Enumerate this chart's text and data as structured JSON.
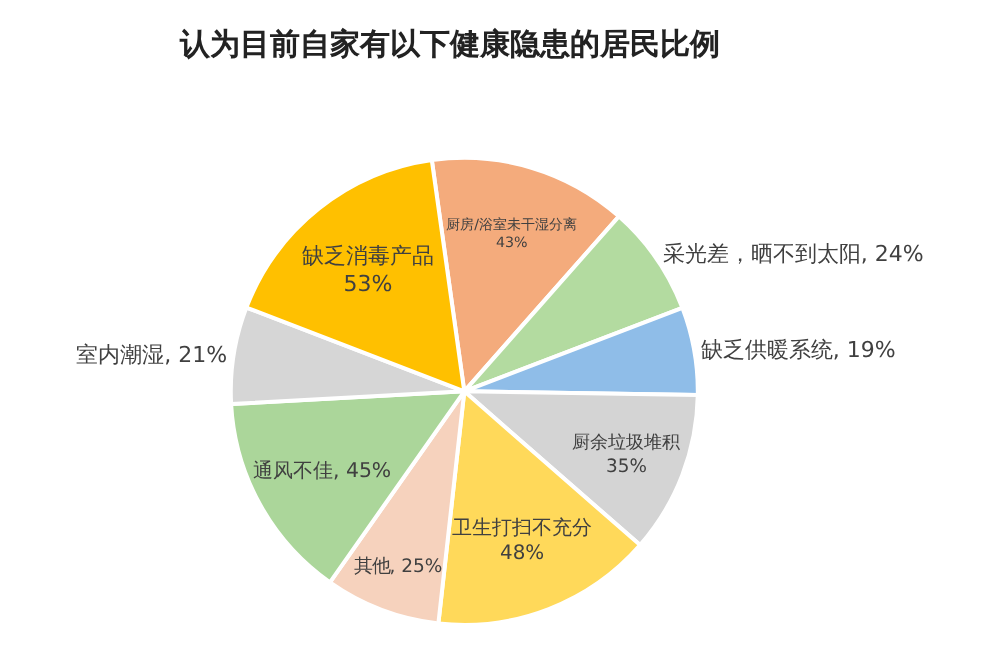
{
  "chart_data": {
    "type": "pie",
    "title": "认为目前自家有以下健康隐患的居民比例",
    "categories": [
      "厨房/浴室未干湿分离",
      "采光差，晒不到太阳",
      "缺乏供暖系统",
      "厨余垃圾堆积",
      "卫生打扫不充分",
      "其他",
      "通风不佳",
      "室内潮湿",
      "缺乏消毒产品"
    ],
    "values": [
      43,
      24,
      19,
      35,
      48,
      25,
      45,
      21,
      53
    ],
    "value_labels": [
      "43%",
      "24%",
      "19%",
      "35%",
      "48%",
      "25%",
      "45%",
      "21%",
      "53%"
    ],
    "colors": [
      "#f4ab7c",
      "#b3dba0",
      "#8fbde8",
      "#d4d4d4",
      "#ffd95a",
      "#f6d2bd",
      "#abd69a",
      "#d6d6d6",
      "#ffc000"
    ],
    "legend": false
  }
}
